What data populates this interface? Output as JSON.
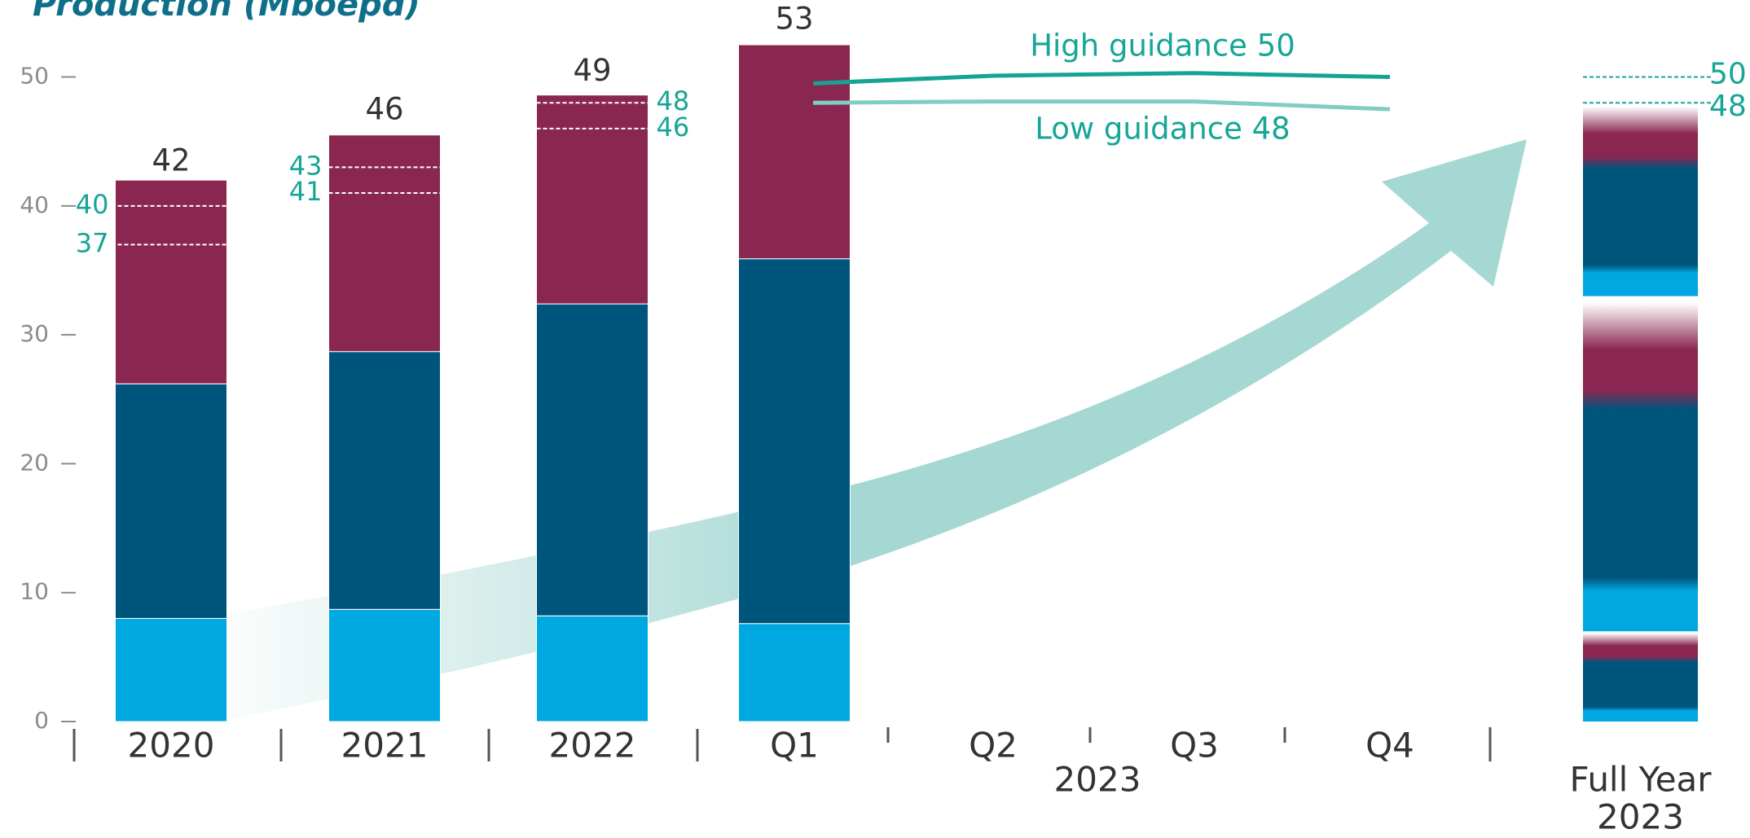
{
  "chart_data": {
    "type": "bar",
    "title": "Production (Mboepd)",
    "categories": [
      "2020",
      "2021",
      "2022",
      "Q1",
      "Q2",
      "Q3",
      "Q4"
    ],
    "group_label": "2023",
    "series": [
      {
        "color": "#00a8e1",
        "values": [
          8.0,
          8.7,
          8.2,
          7.6,
          null,
          null,
          null
        ]
      },
      {
        "color": "#00557d",
        "values": [
          18.2,
          20.0,
          24.2,
          28.3,
          null,
          null,
          null
        ]
      },
      {
        "color": "#8a2750",
        "values": [
          15.8,
          16.8,
          16.2,
          16.6,
          null,
          null,
          null
        ]
      }
    ],
    "totals": [
      42,
      46,
      49,
      53,
      null,
      null,
      null
    ],
    "ranges": [
      {
        "high": 40,
        "low": 37
      },
      {
        "high": 43,
        "low": 41
      },
      {
        "high": 48,
        "low": 46
      },
      null,
      null,
      null,
      null
    ],
    "guidance": [
      {
        "label": "High guidance 50",
        "color": "#14a394",
        "values": [
          null,
          null,
          null,
          49.5,
          50.1,
          50.3,
          50.0
        ]
      },
      {
        "label": "Low guidance  48",
        "color": "#7fcdc4",
        "values": [
          null,
          null,
          null,
          48.0,
          48.1,
          48.1,
          47.5
        ]
      }
    ],
    "full_year": {
      "label": [
        "Full Year",
        "2023"
      ],
      "values": [
        7,
        26,
        15
      ],
      "high": 50,
      "low": 48
    },
    "ylim": [
      0,
      55
    ],
    "yticks": [
      0,
      10,
      20,
      30,
      40,
      50
    ],
    "range_color": "#16a596"
  }
}
